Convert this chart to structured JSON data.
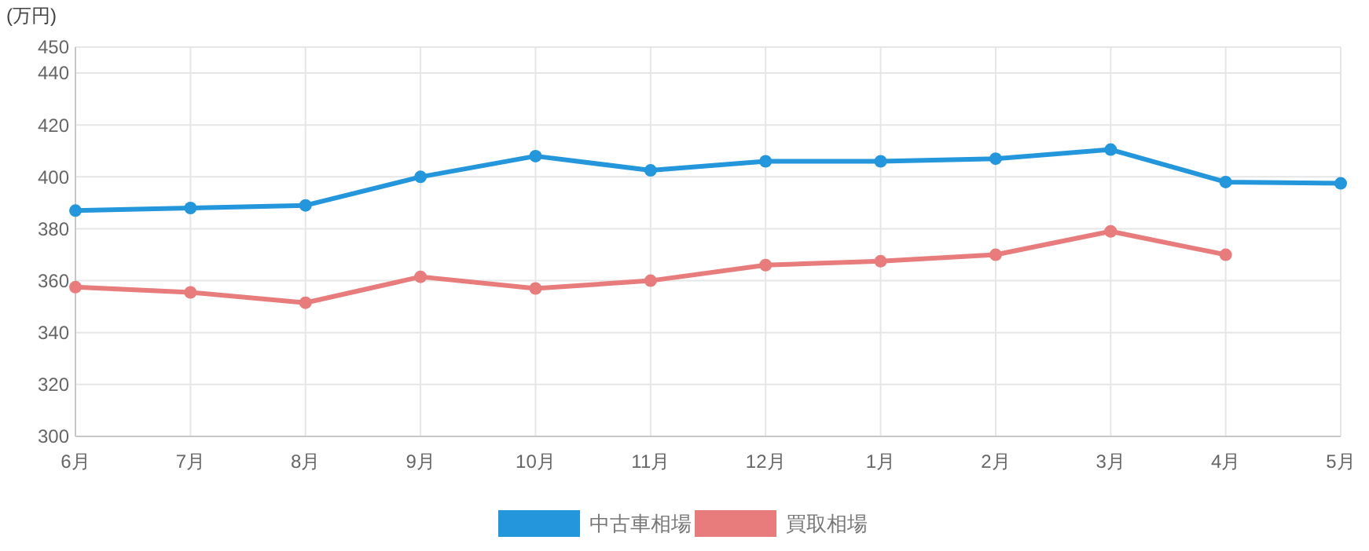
{
  "chart_data": {
    "type": "line",
    "ylabel": "(万円)",
    "categories": [
      "6月",
      "7月",
      "8月",
      "9月",
      "10月",
      "11月",
      "12月",
      "1月",
      "2月",
      "3月",
      "4月",
      "5月"
    ],
    "series": [
      {
        "name": "中古車相場",
        "color": "#2496db",
        "values": [
          387,
          388,
          389,
          400,
          408,
          402.5,
          406,
          406,
          407,
          410.5,
          398,
          397.5
        ]
      },
      {
        "name": "買取相場",
        "color": "#e87c7c",
        "values": [
          357.5,
          355.5,
          351.5,
          361.5,
          357,
          360,
          366,
          367.5,
          370,
          379,
          370,
          null
        ]
      }
    ],
    "ylim": [
      300,
      450
    ],
    "yticks": [
      300,
      320,
      340,
      360,
      380,
      400,
      420,
      440,
      450
    ],
    "grid": true,
    "legend": "bottom",
    "marker": "circle",
    "line_style": "solid"
  }
}
